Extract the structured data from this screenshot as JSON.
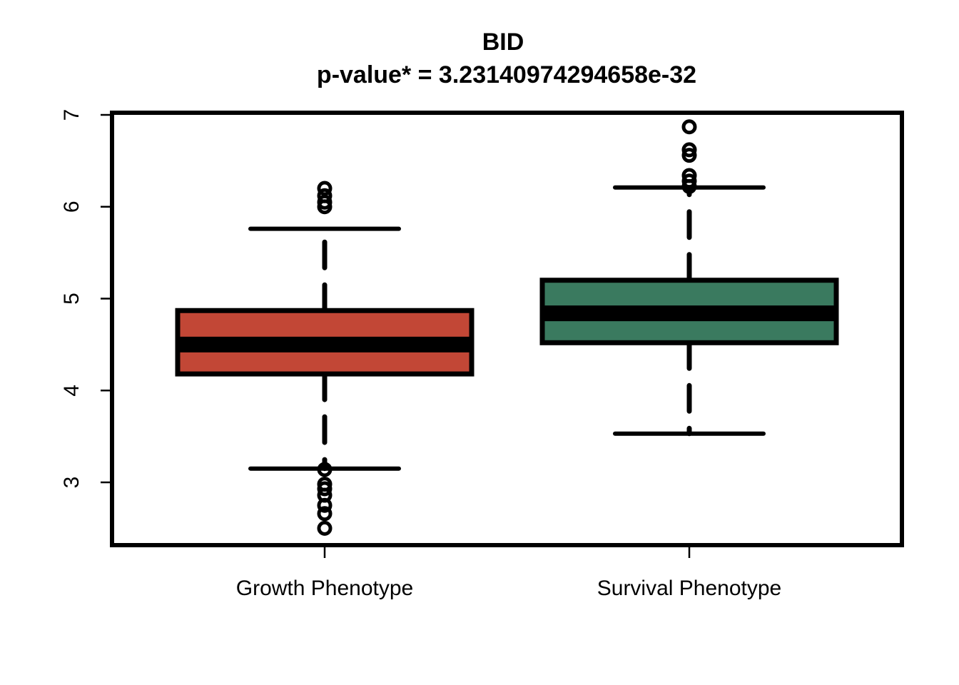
{
  "chart_data": {
    "type": "box",
    "title": "BID",
    "subtitle": "p-value* = 3.23140974294658e-32",
    "xlabel": "",
    "ylabel": "",
    "ylim": [
      2.4,
      7
    ],
    "yticks": [
      3,
      4,
      5,
      6,
      7
    ],
    "grid": false,
    "categories": [
      "Growth Phenotype",
      "Survival Phenotype"
    ],
    "boxes": [
      {
        "category": "Growth Phenotype",
        "color": "#c24736",
        "whisker_low": 3.15,
        "q1": 4.18,
        "median": 4.5,
        "q3": 4.87,
        "whisker_high": 5.76,
        "outliers": [
          6.0,
          6.05,
          6.12,
          6.2,
          3.14,
          2.98,
          2.93,
          2.86,
          2.75,
          2.66,
          2.5
        ]
      },
      {
        "category": "Survival Phenotype",
        "color": "#3a7a5f",
        "whisker_low": 3.53,
        "q1": 4.52,
        "median": 4.84,
        "q3": 5.2,
        "whisker_high": 6.21,
        "outliers": [
          6.22,
          6.28,
          6.34,
          6.56,
          6.62,
          6.87
        ]
      }
    ]
  }
}
